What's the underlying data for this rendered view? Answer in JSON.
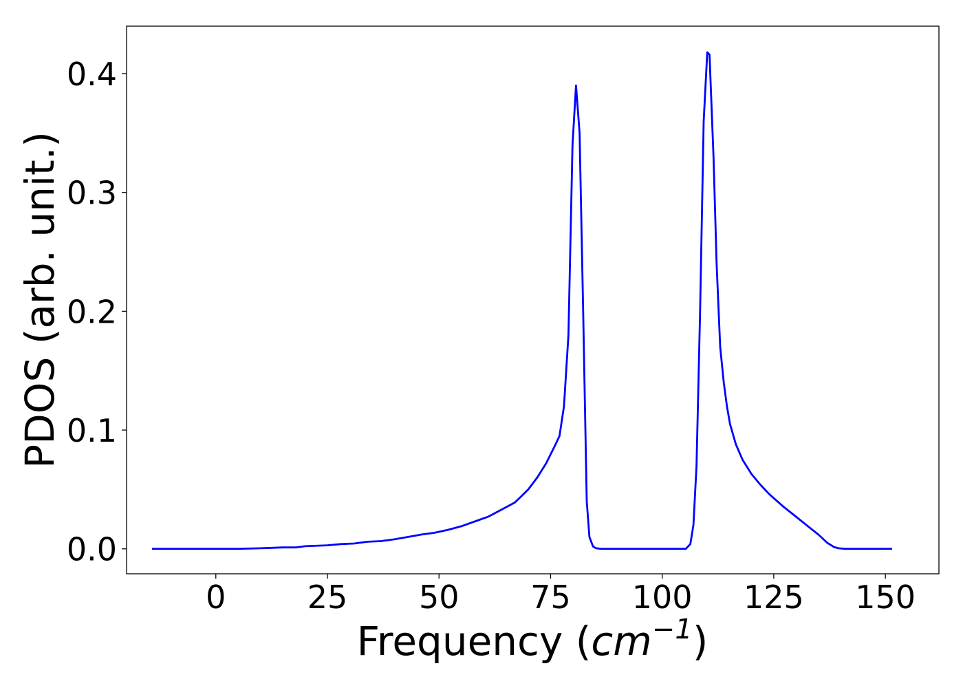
{
  "colors": {
    "series": "#0000ff",
    "axes": "#000000",
    "background": "#ffffff"
  },
  "chart_data": {
    "type": "line",
    "title": "",
    "xlabel": "Frequency",
    "xlabel_unit_base": "cm",
    "xlabel_unit_exponent": "−1",
    "ylabel": "PDOS (arb. unit.)",
    "xlim": [
      -20,
      162
    ],
    "ylim": [
      -0.021,
      0.44
    ],
    "grid": false,
    "xticks": [
      0,
      25,
      50,
      75,
      100,
      125,
      150
    ],
    "xtick_labels": [
      "0",
      "25",
      "50",
      "75",
      "100",
      "125",
      "150"
    ],
    "yticks": [
      0.0,
      0.1,
      0.2,
      0.3,
      0.4
    ],
    "ytick_labels": [
      "0.0",
      "0.1",
      "0.2",
      "0.3",
      "0.4"
    ],
    "series": [
      {
        "x": [
          -14.3,
          0,
          5,
          10,
          15,
          18,
          20,
          25,
          28,
          31,
          34,
          37,
          40,
          43,
          46,
          49,
          52,
          55,
          58,
          61,
          64,
          67,
          70,
          72,
          74,
          76,
          77,
          78,
          79,
          79.9,
          80.7,
          81.5,
          82.3,
          83.1,
          83.7,
          84.5,
          85.2,
          86.3,
          90,
          95,
          100,
          105.3,
          106.3,
          107.0,
          107.7,
          108.5,
          109.3,
          110.1,
          110.6,
          111.5,
          112.2,
          113.0,
          113.8,
          114.5,
          115.2,
          116.5,
          118,
          120,
          122,
          124,
          127,
          130,
          133,
          135,
          137,
          138.5,
          139.5,
          141,
          145,
          151.5
        ],
        "y": [
          0.0,
          0.0,
          0.0,
          0.0005,
          0.0012,
          0.0012,
          0.0022,
          0.003,
          0.004,
          0.0045,
          0.006,
          0.0065,
          0.008,
          0.01,
          0.012,
          0.0135,
          0.016,
          0.019,
          0.023,
          0.027,
          0.033,
          0.039,
          0.05,
          0.06,
          0.072,
          0.087,
          0.095,
          0.12,
          0.18,
          0.34,
          0.39,
          0.35,
          0.2,
          0.04,
          0.01,
          0.002,
          0.0005,
          0.0,
          0.0,
          0.0,
          0.0,
          0.0,
          0.004,
          0.02,
          0.07,
          0.2,
          0.36,
          0.418,
          0.416,
          0.33,
          0.24,
          0.17,
          0.14,
          0.12,
          0.105,
          0.088,
          0.075,
          0.063,
          0.054,
          0.046,
          0.036,
          0.027,
          0.018,
          0.012,
          0.005,
          0.0015,
          0.0005,
          0.0,
          0.0,
          0.0
        ]
      }
    ]
  }
}
